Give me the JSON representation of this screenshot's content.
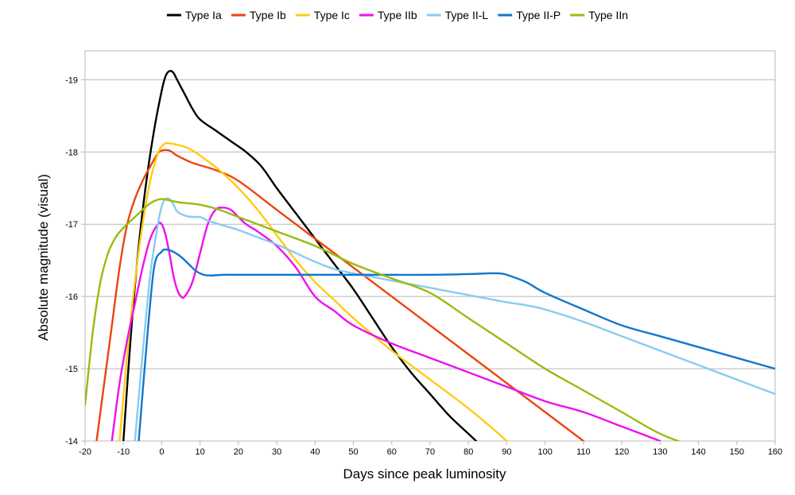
{
  "chart_data": {
    "type": "line",
    "title": "",
    "xlabel": "Days since peak luminosity",
    "ylabel": "Absolute magnitude (visual)",
    "xlim": [
      -20,
      160
    ],
    "ylim": [
      -14,
      -19.4
    ],
    "y_inverted": true,
    "x_ticks": [
      -20,
      -10,
      0,
      10,
      20,
      30,
      40,
      50,
      60,
      70,
      80,
      90,
      100,
      110,
      120,
      130,
      140,
      150,
      160
    ],
    "x_tick_labels": [
      "-20",
      "-10",
      "0",
      "10",
      "20",
      "30",
      "40",
      "50",
      "60",
      "70",
      "80",
      "90",
      "100",
      "110",
      "120",
      "130",
      "140",
      "150",
      "160"
    ],
    "y_ticks": [
      -14,
      -15,
      -16,
      -17,
      -18,
      -19
    ],
    "y_tick_labels": [
      "-14",
      "-15",
      "-16",
      "-17",
      "-18",
      "-19"
    ],
    "grid": "horizontal",
    "legend_position": "top",
    "series": [
      {
        "name": "Type Ia",
        "color": "#000000",
        "x": [
          -10,
          -8,
          -6,
          -4,
          -2,
          0,
          1,
          2,
          3,
          4,
          6,
          8,
          10,
          14,
          18,
          22,
          26,
          30,
          35,
          40,
          45,
          50,
          55,
          60,
          65,
          70,
          75,
          80,
          83
        ],
        "y": [
          -14.0,
          -15.5,
          -16.7,
          -17.6,
          -18.3,
          -18.85,
          -19.05,
          -19.12,
          -19.1,
          -19.0,
          -18.8,
          -18.6,
          -18.45,
          -18.3,
          -18.15,
          -18.0,
          -17.8,
          -17.5,
          -17.15,
          -16.8,
          -16.45,
          -16.1,
          -15.7,
          -15.3,
          -14.95,
          -14.65,
          -14.35,
          -14.1,
          -13.95
        ]
      },
      {
        "name": "Type Ib",
        "color": "#ee4411",
        "x": [
          -17,
          -15,
          -13,
          -11,
          -9,
          -7,
          -5,
          -3,
          -1,
          0,
          2,
          4,
          8,
          14,
          20,
          30,
          40,
          50,
          60,
          70,
          80,
          90,
          100,
          110,
          120,
          130
        ],
        "y": [
          -14.0,
          -14.8,
          -15.6,
          -16.4,
          -17.0,
          -17.35,
          -17.6,
          -17.8,
          -17.98,
          -18.02,
          -18.02,
          -17.95,
          -17.85,
          -17.75,
          -17.6,
          -17.2,
          -16.8,
          -16.4,
          -16.0,
          -15.6,
          -15.2,
          -14.8,
          -14.4,
          -14.0,
          -13.6,
          -13.2
        ]
      },
      {
        "name": "Type Ic",
        "color": "#ffcc11",
        "x": [
          -11,
          -9,
          -7,
          -5,
          -3,
          -1,
          0,
          1,
          2,
          4,
          7,
          10,
          15,
          20,
          25,
          30,
          35,
          40,
          45,
          50,
          60,
          70,
          80,
          90,
          100
        ],
        "y": [
          -14.0,
          -15.2,
          -16.2,
          -17.0,
          -17.6,
          -17.98,
          -18.08,
          -18.12,
          -18.12,
          -18.1,
          -18.05,
          -17.95,
          -17.75,
          -17.5,
          -17.2,
          -16.85,
          -16.5,
          -16.2,
          -15.95,
          -15.7,
          -15.25,
          -14.85,
          -14.45,
          -14.0,
          -13.5
        ]
      },
      {
        "name": "Type IIb",
        "color": "#ee11ee",
        "x": [
          -13,
          -11,
          -9,
          -7,
          -5,
          -3,
          -1,
          0,
          1,
          2,
          3,
          4,
          5,
          6,
          8,
          10,
          12,
          14,
          16,
          18,
          20,
          22,
          25,
          30,
          35,
          40,
          45,
          50,
          60,
          70,
          80,
          90,
          100,
          110,
          120,
          130
        ],
        "y": [
          -14.0,
          -14.8,
          -15.4,
          -15.9,
          -16.4,
          -16.8,
          -17.0,
          -17.0,
          -16.85,
          -16.6,
          -16.3,
          -16.1,
          -16.0,
          -16.0,
          -16.2,
          -16.6,
          -17.0,
          -17.2,
          -17.23,
          -17.2,
          -17.1,
          -17.0,
          -16.9,
          -16.7,
          -16.4,
          -16.0,
          -15.8,
          -15.6,
          -15.35,
          -15.15,
          -14.95,
          -14.75,
          -14.55,
          -14.4,
          -14.2,
          -14.0
        ]
      },
      {
        "name": "Type II-L",
        "color": "#88ccee",
        "x": [
          -7,
          -5,
          -3,
          -1,
          0,
          1,
          2,
          3,
          4,
          6,
          8,
          10,
          12,
          15,
          20,
          25,
          30,
          35,
          40,
          45,
          50,
          55,
          60,
          65,
          70,
          75,
          80,
          85,
          90,
          95,
          100,
          110,
          120,
          130,
          140,
          150,
          160
        ],
        "y": [
          -14.0,
          -15.2,
          -16.3,
          -17.0,
          -17.25,
          -17.35,
          -17.35,
          -17.28,
          -17.18,
          -17.12,
          -17.1,
          -17.1,
          -17.05,
          -17.0,
          -16.92,
          -16.82,
          -16.72,
          -16.6,
          -16.48,
          -16.38,
          -16.32,
          -16.27,
          -16.22,
          -16.17,
          -16.12,
          -16.07,
          -16.02,
          -15.97,
          -15.92,
          -15.88,
          -15.82,
          -15.65,
          -15.45,
          -15.25,
          -15.05,
          -14.85,
          -14.65
        ]
      },
      {
        "name": "Type II-P",
        "color": "#1177cc",
        "x": [
          -6,
          -4,
          -2,
          0,
          1,
          2,
          3,
          5,
          7,
          9,
          11,
          13,
          16,
          20,
          30,
          40,
          50,
          60,
          70,
          80,
          85,
          88,
          90,
          95,
          100,
          110,
          120,
          130,
          140,
          150,
          160
        ],
        "y": [
          -14.0,
          -15.3,
          -16.4,
          -16.62,
          -16.65,
          -16.64,
          -16.62,
          -16.55,
          -16.45,
          -16.35,
          -16.3,
          -16.29,
          -16.3,
          -16.3,
          -16.3,
          -16.3,
          -16.3,
          -16.3,
          -16.3,
          -16.31,
          -16.32,
          -16.32,
          -16.3,
          -16.2,
          -16.05,
          -15.82,
          -15.6,
          -15.45,
          -15.3,
          -15.15,
          -15.0
        ]
      },
      {
        "name": "Type IIn",
        "color": "#99bb11",
        "x": [
          -20,
          -18,
          -16,
          -14,
          -12,
          -10,
          -8,
          -6,
          -4,
          -2,
          0,
          2,
          5,
          10,
          15,
          20,
          30,
          40,
          50,
          60,
          70,
          80,
          90,
          100,
          110,
          120,
          130,
          140
        ],
        "y": [
          -14.5,
          -15.5,
          -16.2,
          -16.6,
          -16.82,
          -16.95,
          -17.05,
          -17.15,
          -17.25,
          -17.32,
          -17.35,
          -17.33,
          -17.3,
          -17.27,
          -17.2,
          -17.1,
          -16.9,
          -16.7,
          -16.45,
          -16.25,
          -16.05,
          -15.7,
          -15.35,
          -15.0,
          -14.7,
          -14.4,
          -14.1,
          -13.9
        ]
      }
    ]
  }
}
